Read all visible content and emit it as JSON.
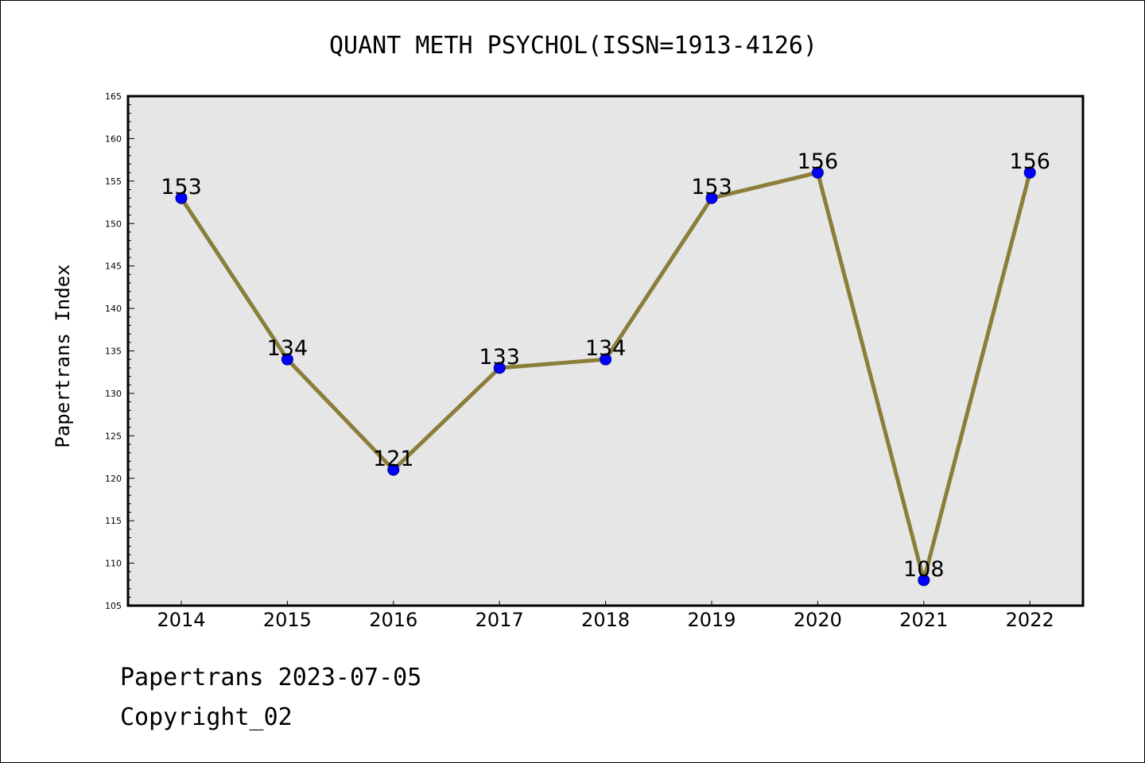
{
  "chart_data": {
    "type": "line",
    "title": "QUANT METH PSYCHOL(ISSN=1913-4126)",
    "xlabel": "",
    "ylabel": "Papertrans Index",
    "categories": [
      "2014",
      "2015",
      "2016",
      "2017",
      "2018",
      "2019",
      "2020",
      "2021",
      "2022"
    ],
    "series": [
      {
        "values": [
          153,
          134,
          121,
          133,
          134,
          153,
          156,
          108,
          156
        ]
      }
    ],
    "ylim": [
      105,
      165
    ],
    "yticks": [
      105,
      110,
      115,
      120,
      125,
      130,
      135,
      140,
      145,
      150,
      155,
      160,
      165
    ],
    "grid": false,
    "legend": "none",
    "colors": {
      "line": "#8b7d3a",
      "marker": "#0000ff",
      "plot_background": "#e6e6e6"
    }
  },
  "footer": {
    "date_line": "Papertrans 2023-07-05",
    "copyright": "Copyright_02"
  }
}
